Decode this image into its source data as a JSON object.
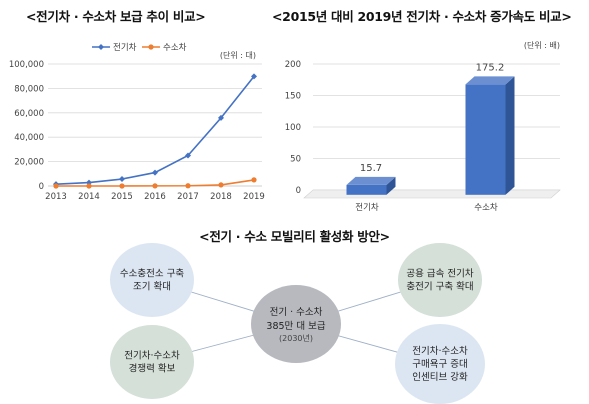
{
  "titles": {
    "left": "<전기차 · 수소차 보급 추이 비교>",
    "right": "<2015년 대비 2019년 전기차 · 수소차 증가속도 비교>",
    "bottom": "<전기 · 수소 모빌리티 활성화 방안>"
  },
  "chart_data": [
    {
      "type": "line",
      "title": "<전기차 · 수소차 보급 추이 비교>",
      "unit_label": "(단위 : 대)",
      "legend_position": "top-center",
      "x": [
        2013,
        2014,
        2015,
        2016,
        2017,
        2018,
        2019
      ],
      "ylim": [
        0,
        100000
      ],
      "yticks": [
        0,
        20000,
        40000,
        60000,
        80000,
        100000
      ],
      "ytick_labels": [
        "0",
        "20,000",
        "40,000",
        "60,000",
        "80,000",
        "100,000"
      ],
      "grid": true,
      "series": [
        {
          "name": "전기차",
          "color": "#4472C4",
          "marker": "diamond",
          "values": [
            1500,
            2800,
            5700,
            11000,
            25000,
            55800,
            89900
          ]
        },
        {
          "name": "수소차",
          "color": "#ED7D31",
          "marker": "circle",
          "values": [
            0,
            0,
            0,
            100,
            200,
            900,
            5000
          ]
        }
      ]
    },
    {
      "type": "bar",
      "title": "<2015년 대비 2019년 전기차 · 수소차 증가속도 비교>",
      "unit_label": "(단위 : 배)",
      "categories": [
        "전기차",
        "수소차"
      ],
      "values": [
        15.7,
        175.2
      ],
      "value_labels": [
        "15.7",
        "175.2"
      ],
      "ylim": [
        0,
        200
      ],
      "yticks": [
        0,
        50,
        100,
        150,
        200
      ],
      "grid": true,
      "color": "#4472C4",
      "style": "3d"
    }
  ],
  "diagram": {
    "center": {
      "line1": "전기 · 수소차",
      "line2": "385만 대 보급",
      "line3": "(2030년)"
    },
    "nodes": [
      {
        "lines": [
          "수소충전소 구축",
          "조기 확대"
        ],
        "color": "#DCE6F2"
      },
      {
        "lines": [
          "공용 급속 전기차",
          "충전기 구축 확대"
        ],
        "color": "#D5E0D9"
      },
      {
        "lines": [
          "전기차·수소차",
          "경쟁력 확보"
        ],
        "color": "#D5E0D9"
      },
      {
        "lines": [
          "전기차·수소차",
          "구매욕구 증대",
          "인센티브 강화"
        ],
        "color": "#DCE6F2"
      }
    ]
  }
}
